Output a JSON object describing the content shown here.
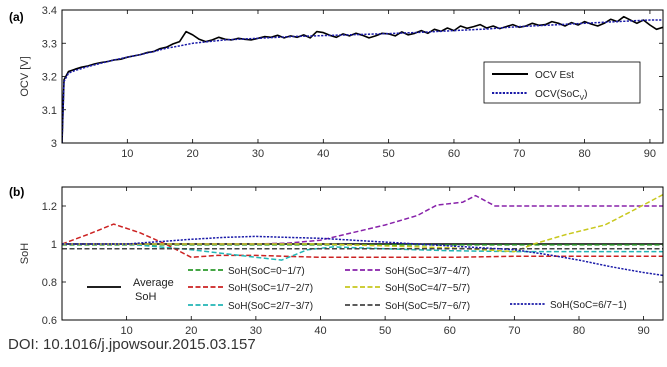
{
  "caption": "DOI: 10.1016/j.jpowsour.2015.03.157",
  "chart_data": [
    {
      "panel": "(a)",
      "type": "line",
      "ylabel": "OCV [V]",
      "xlim": [
        0,
        92
      ],
      "ylim": [
        3.0,
        3.4
      ],
      "xticks": [
        10,
        20,
        30,
        40,
        50,
        60,
        70,
        80,
        90
      ],
      "yticks": [
        3,
        3.1,
        3.2,
        3.3,
        3.4
      ],
      "yticklabels": [
        "3",
        "3.1",
        "3.2",
        "3.3",
        "3.4"
      ],
      "legend_position": "center-right",
      "series": [
        {
          "name": "OCV Est",
          "color": "#000000",
          "dash": "solid",
          "x": [
            0,
            0.3,
            1,
            2,
            3,
            4,
            5,
            6,
            7,
            8,
            9,
            10,
            11,
            12,
            13,
            14,
            15,
            16,
            17,
            18,
            19,
            20,
            21,
            22,
            23,
            24,
            25,
            26,
            27,
            28,
            29,
            30,
            31,
            32,
            33,
            34,
            35,
            36,
            37,
            38,
            39,
            40,
            41,
            42,
            43,
            44,
            45,
            46,
            47,
            48,
            49,
            50,
            51,
            52,
            53,
            54,
            55,
            56,
            57,
            58,
            59,
            60,
            61,
            62,
            63,
            64,
            65,
            66,
            67,
            68,
            69,
            70,
            71,
            72,
            73,
            74,
            75,
            76,
            77,
            78,
            79,
            80,
            81,
            82,
            83,
            84,
            85,
            86,
            87,
            88,
            89,
            90,
            91,
            92
          ],
          "y": [
            3.0,
            3.19,
            3.215,
            3.222,
            3.228,
            3.232,
            3.238,
            3.242,
            3.245,
            3.25,
            3.252,
            3.258,
            3.262,
            3.266,
            3.272,
            3.275,
            3.284,
            3.288,
            3.298,
            3.305,
            3.335,
            3.325,
            3.312,
            3.305,
            3.31,
            3.318,
            3.312,
            3.31,
            3.315,
            3.312,
            3.31,
            3.315,
            3.32,
            3.318,
            3.324,
            3.316,
            3.322,
            3.318,
            3.325,
            3.316,
            3.335,
            3.332,
            3.324,
            3.318,
            3.328,
            3.322,
            3.33,
            3.324,
            3.316,
            3.322,
            3.33,
            3.328,
            3.322,
            3.334,
            3.325,
            3.33,
            3.338,
            3.33,
            3.342,
            3.336,
            3.346,
            3.338,
            3.352,
            3.345,
            3.35,
            3.356,
            3.346,
            3.352,
            3.344,
            3.35,
            3.356,
            3.348,
            3.352,
            3.36,
            3.354,
            3.356,
            3.365,
            3.36,
            3.352,
            3.362,
            3.355,
            3.365,
            3.358,
            3.352,
            3.36,
            3.372,
            3.365,
            3.38,
            3.37,
            3.36,
            3.37,
            3.355,
            3.342,
            3.348
          ]
        },
        {
          "name": "OCV(SoC_V)",
          "color": "#1a1aa8",
          "dash": "dotted",
          "x": [
            0,
            0.3,
            1,
            2,
            4,
            6,
            8,
            10,
            12,
            14,
            16,
            18,
            20,
            25,
            30,
            35,
            40,
            45,
            50,
            55,
            60,
            65,
            70,
            75,
            80,
            85,
            90,
            92
          ],
          "y": [
            3.0,
            3.185,
            3.21,
            3.218,
            3.23,
            3.24,
            3.25,
            3.258,
            3.266,
            3.275,
            3.285,
            3.292,
            3.3,
            3.31,
            3.315,
            3.32,
            3.323,
            3.326,
            3.329,
            3.333,
            3.338,
            3.343,
            3.35,
            3.355,
            3.36,
            3.365,
            3.37,
            3.37
          ]
        }
      ],
      "legend": [
        "OCV Est",
        "OCV(SoC_V)"
      ]
    },
    {
      "panel": "(b)",
      "type": "line",
      "ylabel": "SoH",
      "xlim": [
        0,
        93
      ],
      "ylim": [
        0.6,
        1.3
      ],
      "xticks": [
        10,
        20,
        30,
        40,
        50,
        60,
        70,
        80,
        90
      ],
      "yticks": [
        0.6,
        0.8,
        1,
        1.2
      ],
      "yticklabels": [
        "0.6",
        "0.8",
        "1",
        "1.2"
      ],
      "legend_position": "bottom",
      "series": [
        {
          "name": "Average SoH",
          "color": "#000000",
          "dash": "solid",
          "x": [
            0,
            93
          ],
          "y": [
            1.0,
            1.0
          ]
        },
        {
          "name": "SoH(SoC=0~1/7)",
          "color": "#2d9a2d",
          "dash": "dashed",
          "x": [
            0,
            93
          ],
          "y": [
            0.995,
            0.995
          ]
        },
        {
          "name": "SoH(SoC=1/7~2/7)",
          "color": "#cc2222",
          "dash": "dashed",
          "x": [
            0,
            4,
            8,
            12,
            16,
            20,
            24,
            30,
            40,
            50,
            60,
            70,
            80,
            93
          ],
          "y": [
            1.0,
            1.05,
            1.105,
            1.06,
            1.0,
            0.93,
            0.94,
            0.94,
            0.93,
            0.93,
            0.93,
            0.935,
            0.935,
            0.935
          ]
        },
        {
          "name": "SoH(SoC=2/7~3/7)",
          "color": "#22b5b5",
          "dash": "dashed",
          "x": [
            0,
            10,
            20,
            25,
            30,
            34,
            38,
            42,
            50,
            60,
            70,
            80,
            93
          ],
          "y": [
            1.0,
            1.0,
            0.97,
            0.95,
            0.93,
            0.915,
            0.97,
            0.985,
            0.975,
            0.965,
            0.96,
            0.96,
            0.96
          ]
        },
        {
          "name": "SoH(SoC=3/7~4/7)",
          "color": "#8822aa",
          "dash": "dashed",
          "x": [
            0,
            20,
            30,
            35,
            40,
            45,
            50,
            55,
            58,
            62,
            64,
            67,
            75,
            85,
            93
          ],
          "y": [
            1.0,
            1.0,
            1.0,
            1.005,
            1.02,
            1.06,
            1.1,
            1.15,
            1.205,
            1.22,
            1.255,
            1.2,
            1.2,
            1.2,
            1.2
          ]
        },
        {
          "name": "SoH(SoC=4/7~5/7)",
          "color": "#c8c81e",
          "dash": "dashed",
          "x": [
            0,
            40,
            60,
            70,
            73,
            78,
            84,
            88,
            93
          ],
          "y": [
            1.0,
            1.0,
            0.98,
            0.96,
            1.0,
            1.05,
            1.1,
            1.17,
            1.26
          ]
        },
        {
          "name": "SoH(SoC=5/7~6/7)",
          "color": "#444444",
          "dash": "dashed",
          "x": [
            0,
            93
          ],
          "y": [
            0.975,
            0.975
          ]
        },
        {
          "name": "SoH(SoC=6/7~1)",
          "color": "#1a1aa8",
          "dash": "dotted",
          "x": [
            0,
            10,
            20,
            25,
            30,
            35,
            40,
            45,
            50,
            55,
            60,
            65,
            70,
            75,
            80,
            85,
            90,
            93
          ],
          "y": [
            1.0,
            1.0,
            1.025,
            1.035,
            1.04,
            1.035,
            1.03,
            1.02,
            1.01,
            1.0,
            0.99,
            0.98,
            0.97,
            0.945,
            0.915,
            0.88,
            0.85,
            0.835
          ]
        }
      ],
      "legend": [
        "Average SoH",
        "SoH(SoC=0~1/7)",
        "SoH(SoC=1/7~2/7)",
        "SoH(SoC=2/7~3/7)",
        "SoH(SoC=3/7~4/7)",
        "SoH(SoC=4/7~5/7)",
        "SoH(SoC=5/7~6/7)",
        "SoH(SoC=6/7~1)"
      ]
    }
  ],
  "legend_a": {
    "items": [
      {
        "main": "OCV Est",
        "sub": "",
        "suffix": ""
      },
      {
        "main": "OCV(SoC",
        "sub": "V",
        "suffix": ")"
      }
    ]
  },
  "legend_b": {
    "avg_line1": "Average",
    "avg_line2": "SoH"
  }
}
